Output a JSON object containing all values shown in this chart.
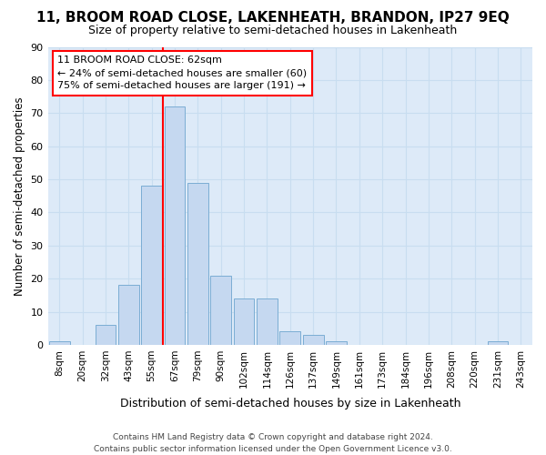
{
  "title": "11, BROOM ROAD CLOSE, LAKENHEATH, BRANDON, IP27 9EQ",
  "subtitle": "Size of property relative to semi-detached houses in Lakenheath",
  "xlabel": "Distribution of semi-detached houses by size in Lakenheath",
  "ylabel": "Number of semi-detached properties",
  "categories": [
    "8sqm",
    "20sqm",
    "32sqm",
    "43sqm",
    "55sqm",
    "67sqm",
    "79sqm",
    "90sqm",
    "102sqm",
    "114sqm",
    "126sqm",
    "137sqm",
    "149sqm",
    "161sqm",
    "173sqm",
    "184sqm",
    "196sqm",
    "208sqm",
    "220sqm",
    "231sqm",
    "243sqm"
  ],
  "values": [
    1,
    0,
    6,
    18,
    48,
    72,
    49,
    21,
    14,
    14,
    4,
    3,
    1,
    0,
    0,
    0,
    0,
    0,
    0,
    1,
    0
  ],
  "bar_color": "#c5d8f0",
  "bar_edge_color": "#7badd4",
  "grid_color": "#c8ddf0",
  "background_color": "#ddeaf8",
  "vline_color": "red",
  "annotation_title": "11 BROOM ROAD CLOSE: 62sqm",
  "annotation_line1": "← 24% of semi-detached houses are smaller (60)",
  "annotation_line2": "75% of semi-detached houses are larger (191) →",
  "annotation_box_color": "white",
  "annotation_box_edge": "red",
  "ylim": [
    0,
    90
  ],
  "yticks": [
    0,
    10,
    20,
    30,
    40,
    50,
    60,
    70,
    80,
    90
  ],
  "footer1": "Contains HM Land Registry data © Crown copyright and database right 2024.",
  "footer2": "Contains public sector information licensed under the Open Government Licence v3.0."
}
